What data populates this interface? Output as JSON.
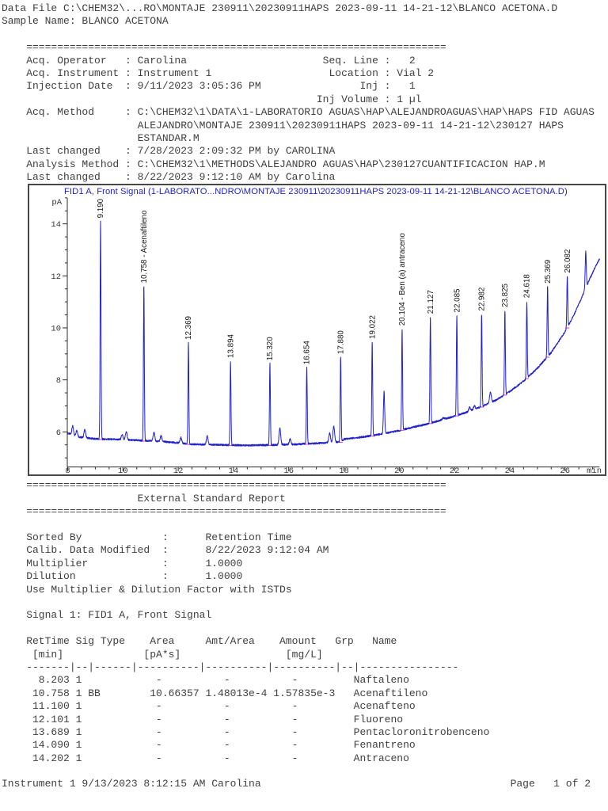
{
  "page": {
    "header": {
      "data_file": "Data File C:\\CHEM32\\...RO\\MONTAJE 230911\\20230911HAPS 2023-09-11 14-21-12\\BLANCO ACETONA.D",
      "sample_name": "Sample Name: BLANCO ACETONA"
    },
    "separator": "    ====================================================================",
    "acq_info_lines": [
      "    Acq. Operator   : Carolina                      Seq. Line :   2",
      "    Acq. Instrument : Instrument 1                   Location : Vial 2",
      "    Injection Date  : 9/11/2023 3:05:36 PM                Inj :   1",
      "                                                   Inj Volume : 1 µl",
      "    Acq. Method     : C:\\CHEM32\\1\\DATA\\1-LABORATORIO AGUAS\\HAP\\ALEJANDROAGUAS\\HAP\\HAPS FID AGUAS",
      "                      ALEJANDRO\\MONTAJE 230911\\20230911HAPS 2023-09-11 14-21-12\\230127 HAPS",
      "                      ESTANDAR.M",
      "    Last changed    : 7/28/2023 2:09:32 PM by CAROLINA",
      "    Analysis Method : C:\\CHEM32\\1\\METHODS\\ALEJANDRO AGUAS\\HAP\\230127CUANTIFICACION HAP.M",
      "    Last changed    : 8/22/2023 9:12:10 AM by Carolina"
    ],
    "esr": {
      "title_line": "                      External Standard Report",
      "info_lines": [
        "    Sorted By             :      Retention Time",
        "    Calib. Data Modified  :      8/22/2023 9:12:04 AM",
        "    Multiplier            :      1.0000",
        "    Dilution              :      1.0000",
        "    Use Multiplier & Dilution Factor with ISTDs"
      ],
      "signal_line": "    Signal 1: FID1 A, Front Signal"
    },
    "table": {
      "indent": "    ",
      "header_lines": [
        "    RetTime Sig Type    Area     Amt/Area    Amount   Grp   Name",
        "     [min]             [pA*s]                 [mg/L]",
        "    -------|--|------|----------|----------|----------|--|----------------"
      ],
      "columns": [
        "RetTime [min]",
        "Sig",
        "Type",
        "Area [pA*s]",
        "Amt/Area",
        "Amount [mg/L]",
        "Grp",
        "Name"
      ],
      "rows": [
        {
          "rettime": "8.203",
          "sig": "1",
          "type": "",
          "area": "-",
          "amt_area": "-",
          "amount": "-",
          "grp": "",
          "name": "Naftaleno"
        },
        {
          "rettime": "10.758",
          "sig": "1",
          "type": "BB",
          "area": "10.66357",
          "amt_area": "1.48013e-4",
          "amount": "1.57835e-3",
          "grp": "",
          "name": "Acenaftileno"
        },
        {
          "rettime": "11.100",
          "sig": "1",
          "type": "",
          "area": "-",
          "amt_area": "-",
          "amount": "-",
          "grp": "",
          "name": "Acenafteno"
        },
        {
          "rettime": "12.101",
          "sig": "1",
          "type": "",
          "area": "-",
          "amt_area": "-",
          "amount": "-",
          "grp": "",
          "name": "Fluoreno"
        },
        {
          "rettime": "13.689",
          "sig": "1",
          "type": "",
          "area": "-",
          "amt_area": "-",
          "amount": "-",
          "grp": "",
          "name": "Pentacloronitrobenceno"
        },
        {
          "rettime": "14.090",
          "sig": "1",
          "type": "",
          "area": "-",
          "amt_area": "-",
          "amount": "-",
          "grp": "",
          "name": "Fenantreno"
        },
        {
          "rettime": "14.202",
          "sig": "1",
          "type": "",
          "area": "-",
          "amt_area": "-",
          "amount": "-",
          "grp": "",
          "name": "Antraceno"
        }
      ]
    },
    "footer": {
      "left": "Instrument 1 9/13/2023 8:12:15 AM Carolina",
      "right": "Page   1 of 2"
    }
  },
  "chart_data": {
    "type": "line",
    "title": "FID1 A, Front Signal (1-LABORATO...NDRO\\MONTAJE 230911\\20230911HAPS 2023-09-11 14-21-12\\BLANCO ACETONA.D)",
    "y_unit": "pA",
    "x_unit": "min",
    "x_ticks": [
      8,
      10,
      12,
      14,
      16,
      18,
      20,
      22,
      24,
      26
    ],
    "y_ticks": [
      6,
      8,
      10,
      12,
      14
    ],
    "x_range": [
      8,
      27.25
    ],
    "y_axis_bottom": 4.65,
    "y_axis_top": 15.0,
    "grid": false,
    "line_color": "#2121cc",
    "title_color": "#2222cc",
    "marker_color": "#f23dd0",
    "baseline": [
      [
        8.0,
        5.95
      ],
      [
        8.4,
        5.8
      ],
      [
        9.0,
        5.73
      ],
      [
        10.0,
        5.7
      ],
      [
        10.4,
        5.68
      ],
      [
        11.0,
        5.65
      ],
      [
        11.5,
        5.62
      ],
      [
        12.0,
        5.58
      ],
      [
        12.5,
        5.52
      ],
      [
        13.5,
        5.5
      ],
      [
        14.5,
        5.48
      ],
      [
        15.5,
        5.5
      ],
      [
        16.2,
        5.52
      ],
      [
        16.8,
        5.55
      ],
      [
        17.3,
        5.58
      ],
      [
        17.9,
        5.62
      ],
      [
        18.0,
        5.72
      ],
      [
        18.5,
        5.78
      ],
      [
        19.0,
        5.85
      ],
      [
        19.5,
        5.95
      ],
      [
        20.0,
        6.05
      ],
      [
        20.5,
        6.18
      ],
      [
        21.0,
        6.3
      ],
      [
        21.5,
        6.45
      ],
      [
        22.0,
        6.6
      ],
      [
        22.5,
        6.78
      ],
      [
        23.0,
        6.98
      ],
      [
        23.5,
        7.22
      ],
      [
        24.0,
        7.55
      ],
      [
        24.5,
        7.95
      ],
      [
        25.0,
        8.45
      ],
      [
        25.5,
        9.05
      ],
      [
        26.0,
        9.85
      ],
      [
        26.3,
        10.45
      ],
      [
        26.6,
        11.15
      ],
      [
        26.9,
        11.9
      ],
      [
        27.1,
        12.35
      ],
      [
        27.25,
        12.65
      ]
    ],
    "peaks": [
      {
        "rt": 8.18,
        "apex": 6.22,
        "label": "",
        "w": 0.03
      },
      {
        "rt": 8.33,
        "apex": 6.06,
        "label": "",
        "w": 0.03
      },
      {
        "rt": 8.62,
        "apex": 6.08,
        "label": "",
        "w": 0.03
      },
      {
        "rt": 9.19,
        "apex": 14.1,
        "label": "9.190"
      },
      {
        "rt": 9.97,
        "apex": 5.9,
        "label": "",
        "w": 0.03
      },
      {
        "rt": 10.12,
        "apex": 6.0,
        "label": "",
        "w": 0.03
      },
      {
        "rt": 10.758,
        "apex": 11.6,
        "label": "10.758 - Acenaftileno"
      },
      {
        "rt": 11.12,
        "apex": 5.98,
        "label": "",
        "w": 0.03
      },
      {
        "rt": 11.38,
        "apex": 5.85,
        "label": "",
        "w": 0.03
      },
      {
        "rt": 12.1,
        "apex": 5.78,
        "label": "",
        "w": 0.03
      },
      {
        "rt": 12.369,
        "apex": 9.42,
        "label": "12.369"
      },
      {
        "rt": 13.05,
        "apex": 5.85,
        "label": "",
        "w": 0.03
      },
      {
        "rt": 13.894,
        "apex": 8.72,
        "label": "13.894"
      },
      {
        "rt": 15.32,
        "apex": 8.62,
        "label": "15.320"
      },
      {
        "rt": 15.68,
        "apex": 6.15,
        "label": "",
        "w": 0.03
      },
      {
        "rt": 16.05,
        "apex": 5.72,
        "label": "",
        "w": 0.03
      },
      {
        "rt": 16.654,
        "apex": 8.47,
        "label": "16.654"
      },
      {
        "rt": 17.48,
        "apex": 5.95,
        "label": "",
        "w": 0.03
      },
      {
        "rt": 17.63,
        "apex": 6.22,
        "label": "",
        "w": 0.03
      },
      {
        "rt": 17.88,
        "apex": 8.87,
        "label": "17.880"
      },
      {
        "rt": 19.022,
        "apex": 9.45,
        "label": "19.022"
      },
      {
        "rt": 19.45,
        "apex": 7.55,
        "label": "",
        "w": 0.022
      },
      {
        "rt": 20.104,
        "apex": 9.96,
        "label": "20.104 - Ben (a) antraceno"
      },
      {
        "rt": 21.127,
        "apex": 10.42,
        "label": "21.127"
      },
      {
        "rt": 21.6,
        "apex": 6.55,
        "label": "",
        "w": 0.03
      },
      {
        "rt": 22.085,
        "apex": 10.47,
        "label": "22.085"
      },
      {
        "rt": 22.55,
        "apex": 6.95,
        "label": "",
        "w": 0.03
      },
      {
        "rt": 22.72,
        "apex": 7.0,
        "label": "",
        "w": 0.03
      },
      {
        "rt": 22.982,
        "apex": 10.53,
        "label": "22.982"
      },
      {
        "rt": 23.3,
        "apex": 7.52,
        "label": "",
        "w": 0.03
      },
      {
        "rt": 23.825,
        "apex": 10.67,
        "label": "23.825"
      },
      {
        "rt": 24.618,
        "apex": 11.03,
        "label": "24.618"
      },
      {
        "rt": 25.369,
        "apex": 11.59,
        "label": "25.369"
      },
      {
        "rt": 26.082,
        "apex": 11.99,
        "label": "26.082"
      },
      {
        "rt": 26.75,
        "apex": 12.93,
        "label": "",
        "w": 0.02
      }
    ]
  }
}
